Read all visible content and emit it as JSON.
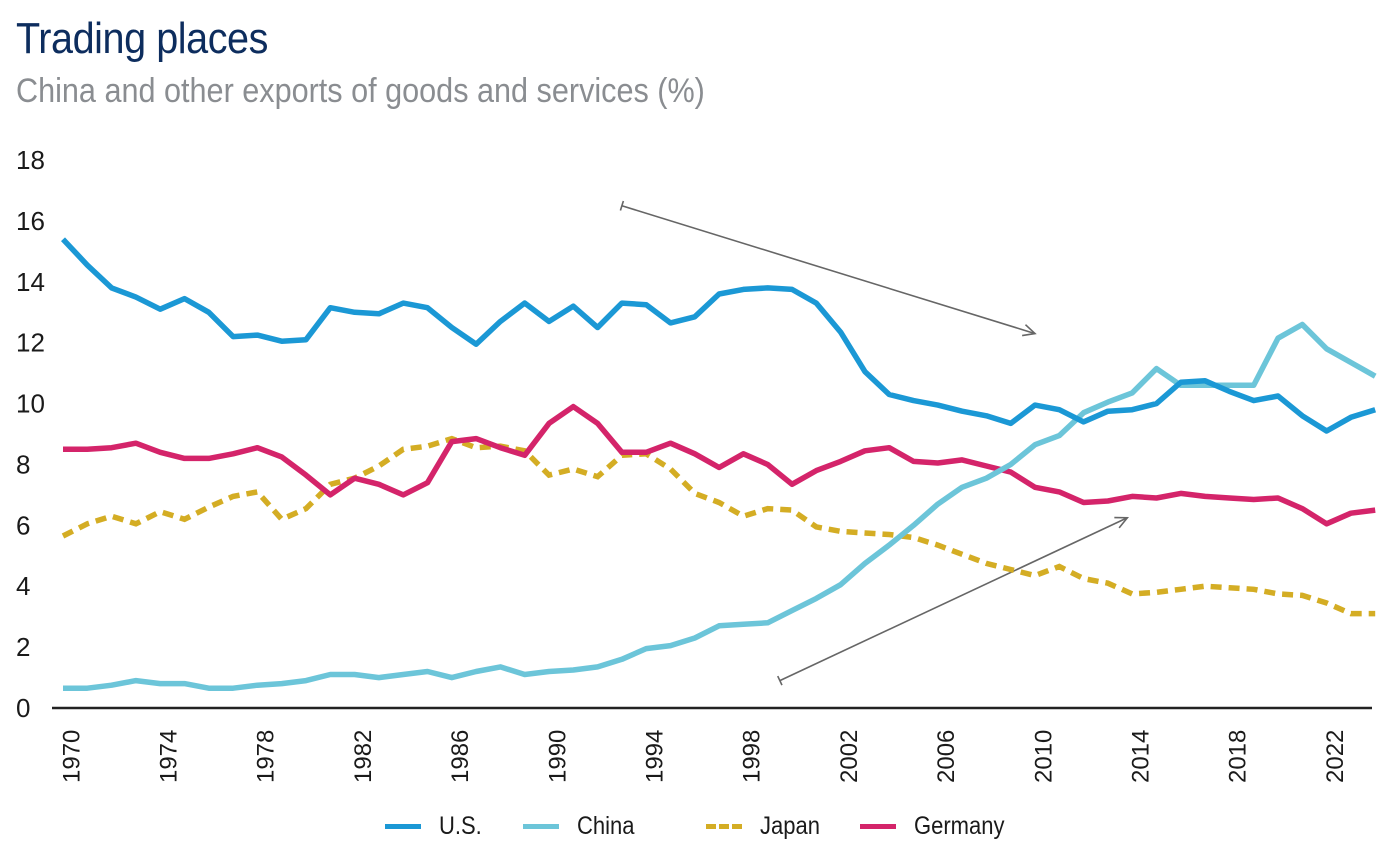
{
  "header": {
    "title": "Trading places",
    "subtitle": "China and other exports of goods and services (%)"
  },
  "chart_data": {
    "type": "line",
    "title": "Trading places",
    "subtitle": "China and other exports of goods and services (%)",
    "xlabel": "",
    "ylabel": "",
    "ylim": [
      0,
      18
    ],
    "xlim": [
      1970,
      2024
    ],
    "yticks": [
      0,
      2,
      4,
      6,
      8,
      10,
      12,
      14,
      16,
      18
    ],
    "xticks": [
      1970,
      1974,
      1978,
      1982,
      1986,
      1990,
      1994,
      1998,
      2002,
      2006,
      2010,
      2014,
      2018,
      2022
    ],
    "grid": false,
    "legend_position": "bottom-center",
    "x": [
      1970,
      1971,
      1972,
      1973,
      1974,
      1975,
      1976,
      1977,
      1978,
      1979,
      1980,
      1981,
      1982,
      1983,
      1984,
      1985,
      1986,
      1987,
      1988,
      1989,
      1990,
      1991,
      1992,
      1993,
      1994,
      1995,
      1996,
      1997,
      1998,
      1999,
      2000,
      2001,
      2002,
      2003,
      2004,
      2005,
      2006,
      2007,
      2008,
      2009,
      2010,
      2011,
      2012,
      2013,
      2014,
      2015,
      2016,
      2017,
      2018,
      2019,
      2020,
      2021,
      2022,
      2023,
      2024
    ],
    "series": [
      {
        "name": "U.S.",
        "color": "#1b98d5",
        "style": "solid",
        "values": [
          15.4,
          14.55,
          13.8,
          13.5,
          13.1,
          13.45,
          13.0,
          12.2,
          12.25,
          12.05,
          12.1,
          13.15,
          13.0,
          12.95,
          13.3,
          13.15,
          12.5,
          11.95,
          12.7,
          13.3,
          12.7,
          13.2,
          12.5,
          13.3,
          13.25,
          12.65,
          12.85,
          13.6,
          13.75,
          13.8,
          13.75,
          13.3,
          12.35,
          11.05,
          10.3,
          10.1,
          9.95,
          9.75,
          9.6,
          9.35,
          9.95,
          9.8,
          9.4,
          9.75,
          9.8,
          10.0,
          10.7,
          10.75,
          10.4,
          10.1,
          10.25,
          9.6,
          9.1,
          9.55,
          9.8
        ]
      },
      {
        "name": "China",
        "color": "#6cc5d9",
        "style": "solid",
        "values": [
          0.65,
          0.65,
          0.75,
          0.9,
          0.8,
          0.8,
          0.65,
          0.65,
          0.75,
          0.8,
          0.9,
          1.1,
          1.1,
          1.0,
          1.1,
          1.2,
          1.0,
          1.2,
          1.35,
          1.1,
          1.2,
          1.25,
          1.35,
          1.6,
          1.95,
          2.05,
          2.3,
          2.7,
          2.75,
          2.8,
          3.2,
          3.6,
          4.05,
          4.75,
          5.35,
          6.0,
          6.7,
          7.25,
          7.55,
          8.0,
          8.65,
          8.95,
          9.7,
          10.05,
          10.35,
          11.15,
          10.6,
          10.6,
          10.6,
          10.6,
          12.15,
          12.6,
          11.8,
          11.35,
          10.9
        ]
      },
      {
        "name": "Japan",
        "color": "#d4ad24",
        "style": "dashed",
        "values": [
          5.65,
          6.05,
          6.3,
          6.05,
          6.45,
          6.2,
          6.6,
          6.95,
          7.1,
          6.2,
          6.55,
          7.35,
          7.55,
          7.95,
          8.5,
          8.6,
          8.85,
          8.55,
          8.6,
          8.45,
          7.65,
          7.85,
          7.6,
          8.3,
          8.35,
          7.85,
          7.05,
          6.75,
          6.3,
          6.55,
          6.5,
          5.95,
          5.8,
          5.75,
          5.7,
          5.6,
          5.35,
          5.05,
          4.75,
          4.55,
          4.35,
          4.65,
          4.25,
          4.1,
          3.75,
          3.8,
          3.9,
          4.0,
          3.95,
          3.9,
          3.75,
          3.7,
          3.45,
          3.1,
          3.1
        ]
      },
      {
        "name": "Germany",
        "color": "#d4246a",
        "style": "solid",
        "values": [
          8.5,
          8.5,
          8.55,
          8.7,
          8.4,
          8.2,
          8.2,
          8.35,
          8.55,
          8.25,
          7.65,
          7.0,
          7.55,
          7.35,
          7.0,
          7.4,
          8.75,
          8.85,
          8.55,
          8.3,
          9.35,
          9.9,
          9.35,
          8.4,
          8.4,
          8.7,
          8.35,
          7.9,
          8.35,
          8.0,
          7.35,
          7.8,
          8.1,
          8.45,
          8.55,
          8.1,
          8.05,
          8.15,
          7.95,
          7.75,
          7.25,
          7.1,
          6.75,
          6.8,
          6.95,
          6.9,
          7.05,
          6.95,
          6.9,
          6.85,
          6.9,
          6.55,
          6.05,
          6.4,
          6.5
        ]
      }
    ],
    "annotations": [
      {
        "type": "arrow",
        "description": "downward trend arrow",
        "from": [
          1993,
          16.5
        ],
        "to": [
          2010,
          12.3
        ]
      },
      {
        "type": "arrow",
        "description": "upward trend arrow",
        "from": [
          1999.5,
          0.9
        ],
        "to": [
          2013.8,
          6.25
        ]
      }
    ]
  }
}
